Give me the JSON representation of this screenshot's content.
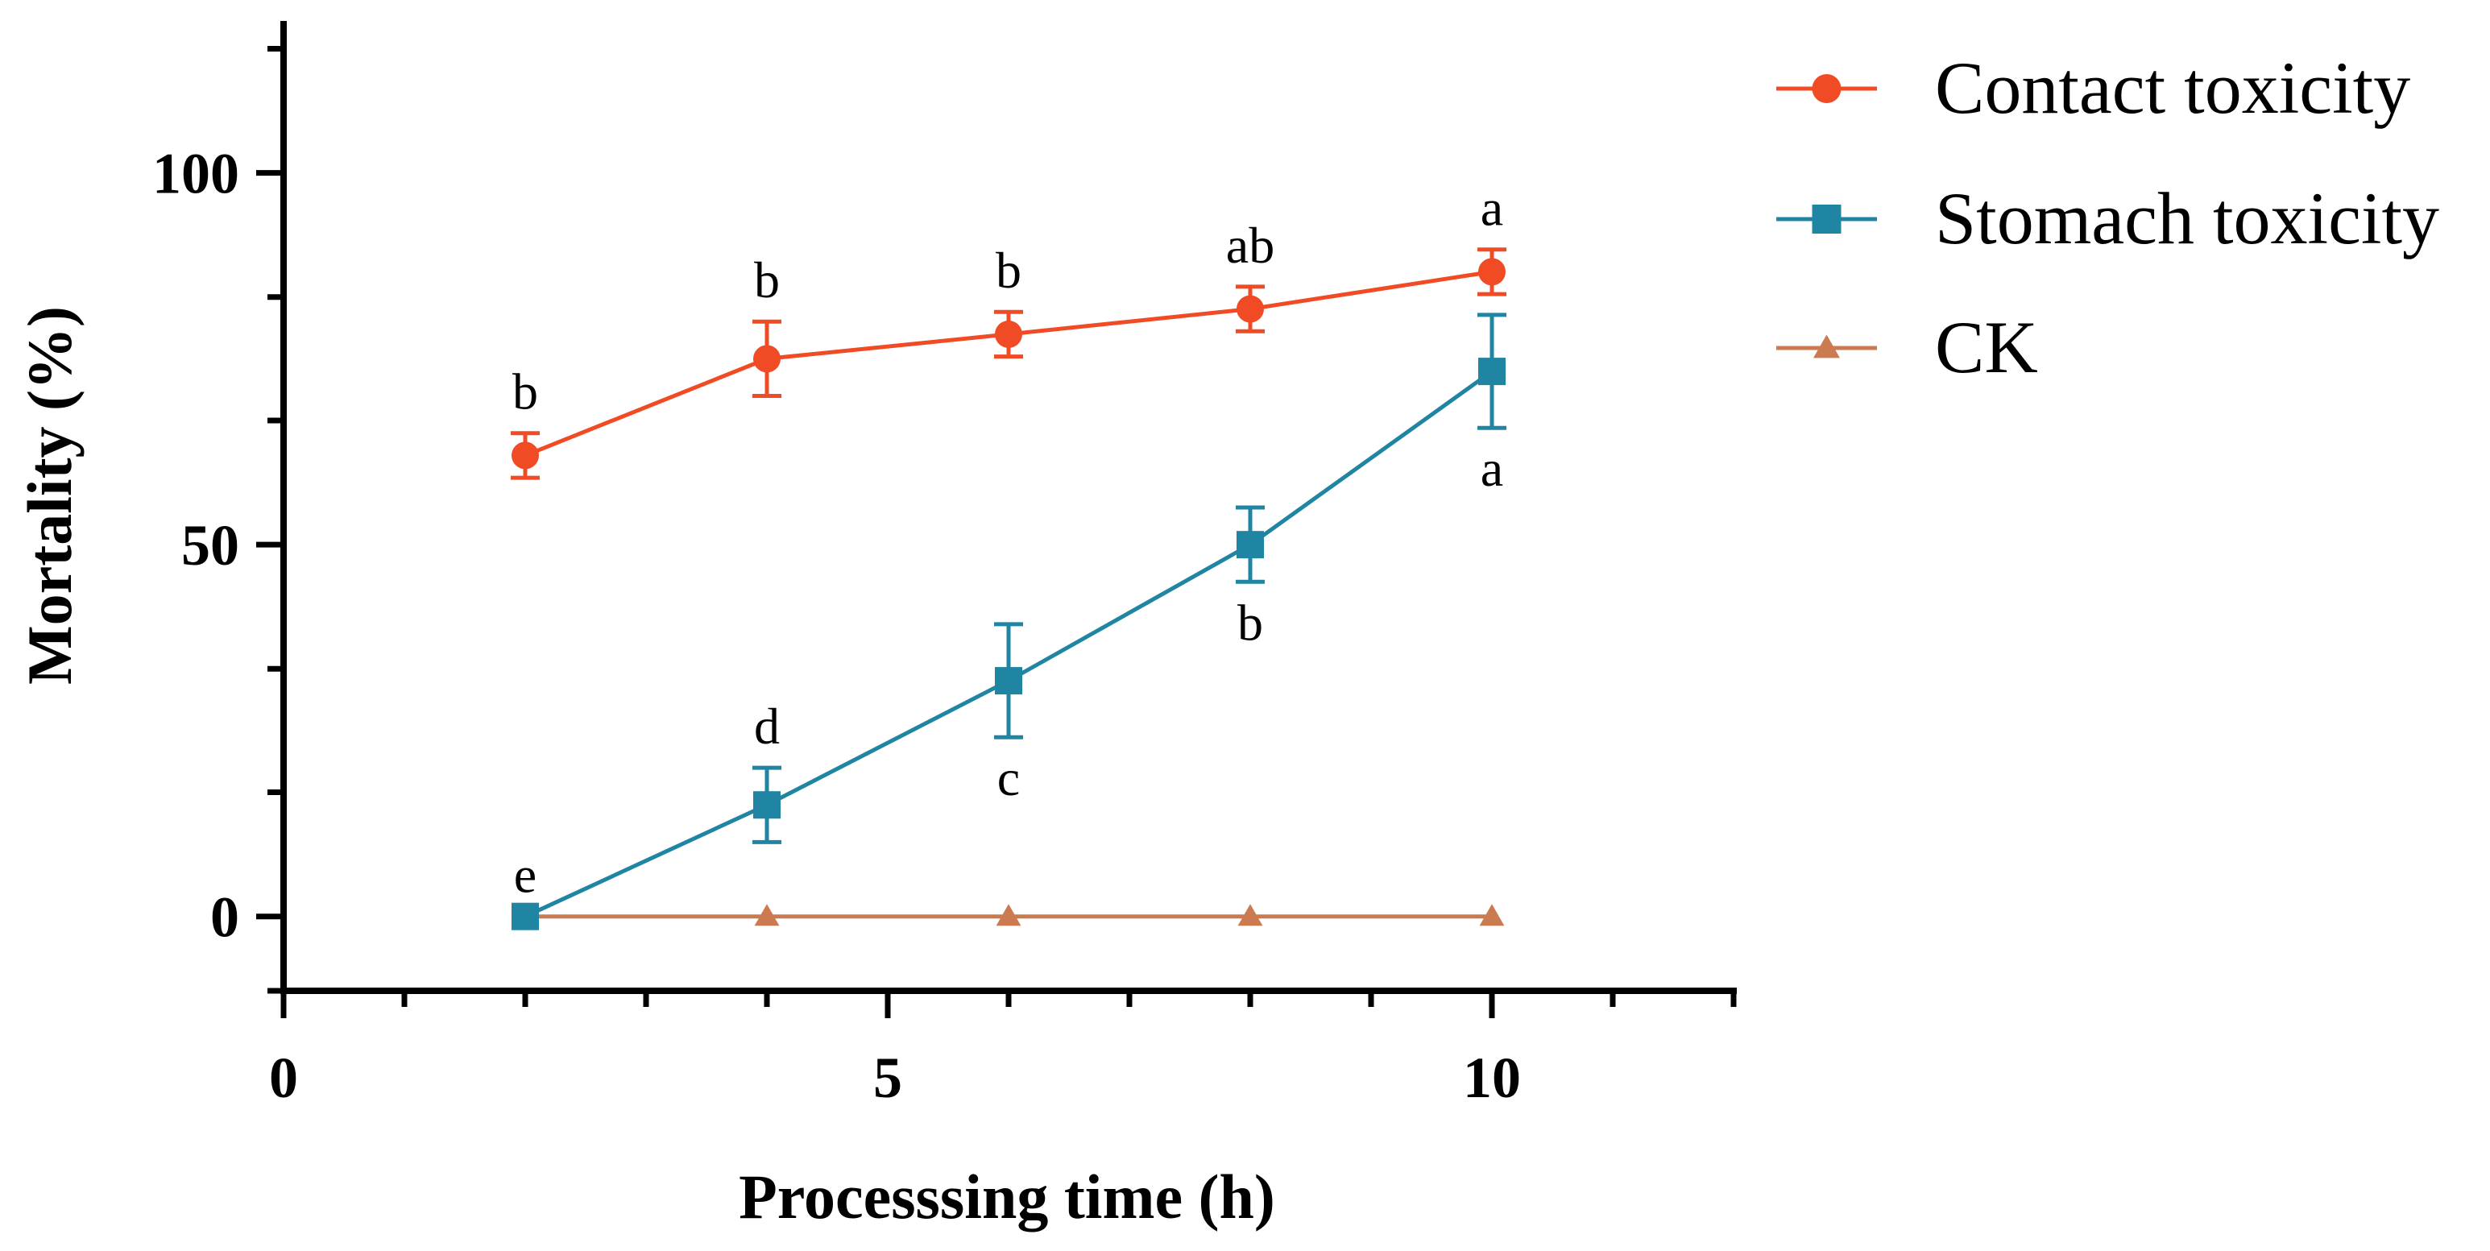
{
  "colors": {
    "contact": "#f04b24",
    "stomach": "#2085a3",
    "ck": "#cc7a4f",
    "axis": "#000000"
  },
  "chart_data": {
    "type": "line",
    "title": "",
    "xlabel": "Processsing time (h)",
    "ylabel": "Mortality (%)",
    "xlim": [
      0,
      12
    ],
    "ylim": [
      -10,
      120
    ],
    "x_major_ticks": [
      0,
      5,
      10
    ],
    "x_minor_ticks": [
      1,
      2,
      3,
      4,
      6,
      7,
      8,
      9,
      11,
      12
    ],
    "y_major_ticks": [
      0,
      50,
      100
    ],
    "y_minor_ticks": [
      -10,
      16.7,
      33.3,
      66.7,
      83.3,
      116.7
    ],
    "legend_position": "right",
    "series": [
      {
        "name": "Contact toxicity",
        "marker": "circle",
        "color": "#f04b24",
        "x": [
          2,
          4,
          6,
          8,
          10
        ],
        "y": [
          62,
          75,
          78.3,
          81.7,
          86.7
        ],
        "err": [
          3,
          5,
          3,
          3,
          3
        ],
        "letters": [
          "b",
          "b",
          "b",
          "ab",
          "a"
        ],
        "letter_position": [
          "above",
          "above",
          "above",
          "above",
          "above"
        ]
      },
      {
        "name": "Stomach toxicity",
        "marker": "square",
        "color": "#2085a3",
        "x": [
          2,
          4,
          6,
          8,
          10
        ],
        "y": [
          0,
          15,
          31.7,
          50,
          73.3
        ],
        "err": [
          0,
          5,
          7.6,
          5,
          7.6
        ],
        "letters": [
          "e",
          "d",
          "c",
          "b",
          "a"
        ],
        "letter_position": [
          "above",
          "above",
          "below",
          "below",
          "below"
        ]
      },
      {
        "name": "CK",
        "marker": "triangle",
        "color": "#cc7a4f",
        "x": [
          2,
          4,
          6,
          8,
          10
        ],
        "y": [
          0,
          0,
          0,
          0,
          0
        ],
        "err": [
          0,
          0,
          0,
          0,
          0
        ],
        "letters": [
          "",
          "",
          "",
          "",
          ""
        ],
        "letter_position": [
          "",
          "",
          "",
          "",
          ""
        ]
      }
    ]
  }
}
